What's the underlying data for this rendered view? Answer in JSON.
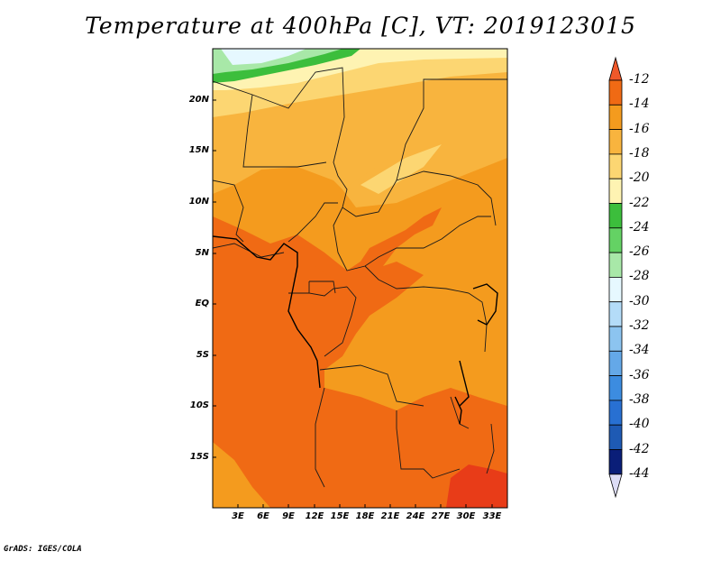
{
  "title": "Temperature at 400hPa [C], VT: 2019123015",
  "footer": "GrADS: IGES/COLA",
  "lat_labels": [
    "20N",
    "15N",
    "10N",
    "5N",
    "EQ",
    "5S",
    "10S",
    "15S"
  ],
  "lon_labels": [
    "3E",
    "6E",
    "9E",
    "12E",
    "15E",
    "18E",
    "21E",
    "24E",
    "27E",
    "30E",
    "33E"
  ],
  "colorbar": {
    "labels": [
      "-12",
      "-14",
      "-16",
      "-18",
      "-20",
      "-22",
      "-24",
      "-26",
      "-28",
      "-30",
      "-32",
      "-34",
      "-36",
      "-38",
      "-40",
      "-42",
      "-44"
    ],
    "top_arrow_color": "#f0582a",
    "bottom_arrow_color": "#dcdcf5",
    "colors": [
      "#f06a14",
      "#f49b1e",
      "#f8b43e",
      "#fcd672",
      "#fef3b2",
      "#3cbe3c",
      "#64d264",
      "#a8e8a8",
      "#e6f8ff",
      "#b4dcf8",
      "#8cc4f0",
      "#64a8e8",
      "#3c8ce0",
      "#2870d2",
      "#1e5ab4",
      "#0a1e78"
    ]
  },
  "map_colors": {
    "c12": "#e83c18",
    "c14": "#f06a14",
    "c16": "#f49b1e",
    "c18": "#f8b43e",
    "c20": "#fcd672",
    "c22": "#fef3b2",
    "c24": "#3cbe3c",
    "c26": "#a8e8a8",
    "c28": "#e6f8ff"
  }
}
